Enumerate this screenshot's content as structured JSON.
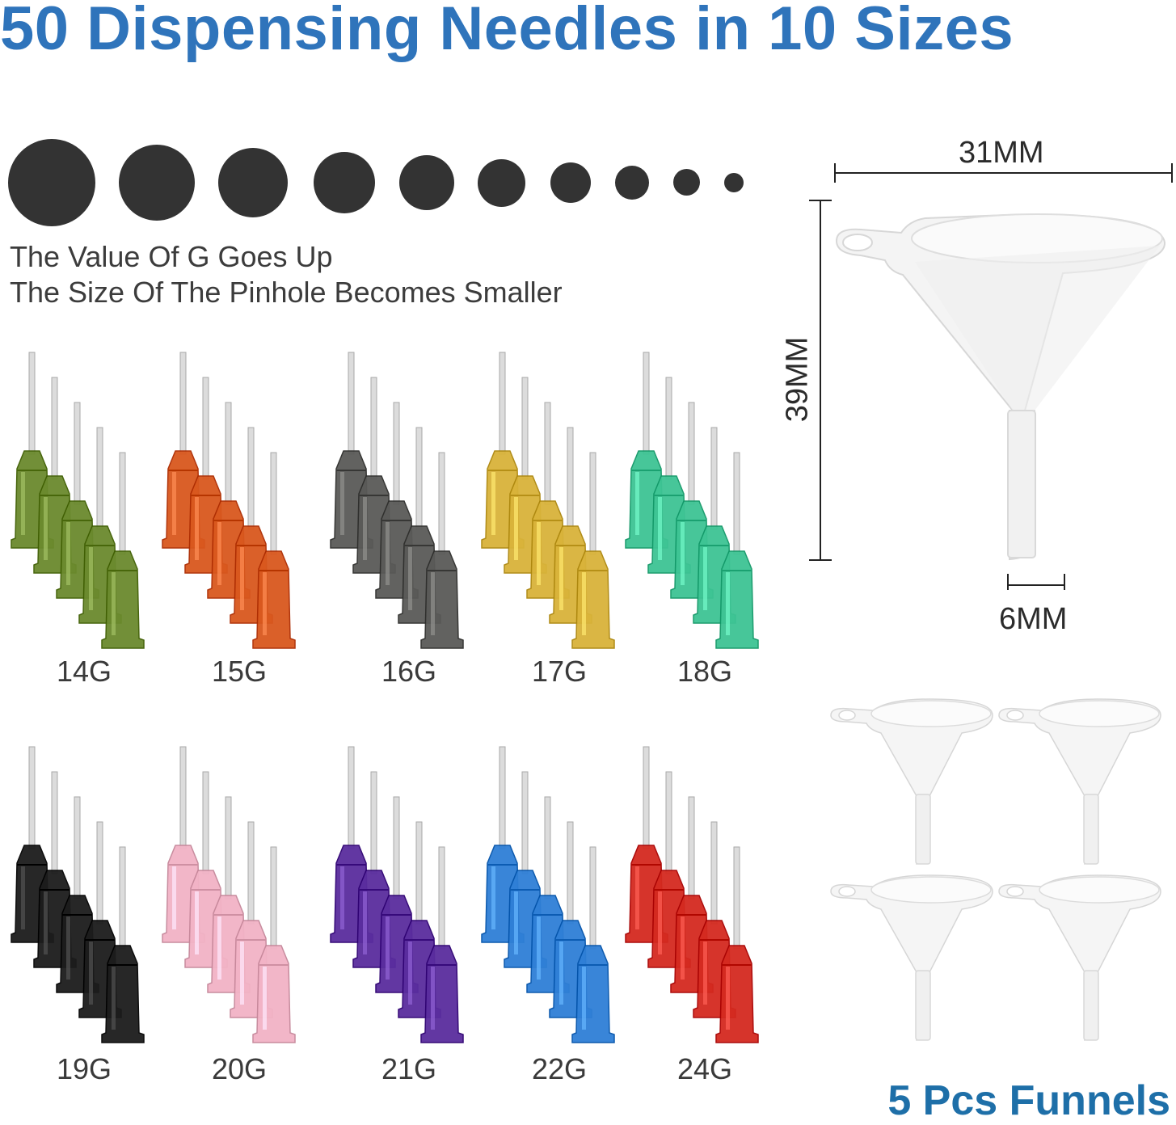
{
  "title": "50 Dispensing Needles in 10 Sizes",
  "caption": {
    "line1": "The Value Of G Goes Up",
    "line2": "The Size Of The Pinhole Becomes Smaller"
  },
  "needle_sets": [
    {
      "gauge": "14G",
      "color": "#6b8a2e"
    },
    {
      "gauge": "15G",
      "color": "#d9581e"
    },
    {
      "gauge": "16G",
      "color": "#5a5a58"
    },
    {
      "gauge": "17G",
      "color": "#d9b33a"
    },
    {
      "gauge": "18G",
      "color": "#3ec494"
    },
    {
      "gauge": "19G",
      "color": "#1c1c1c"
    },
    {
      "gauge": "20G",
      "color": "#f2b3c6"
    },
    {
      "gauge": "21G",
      "color": "#5a2d9e"
    },
    {
      "gauge": "22G",
      "color": "#2f7fd6"
    },
    {
      "gauge": "24G",
      "color": "#d42a20"
    }
  ],
  "funnel_dimensions": {
    "width": "31MM",
    "height": "39MM",
    "spout": "6MM"
  },
  "funnels_caption": "5 Pcs Funnels"
}
